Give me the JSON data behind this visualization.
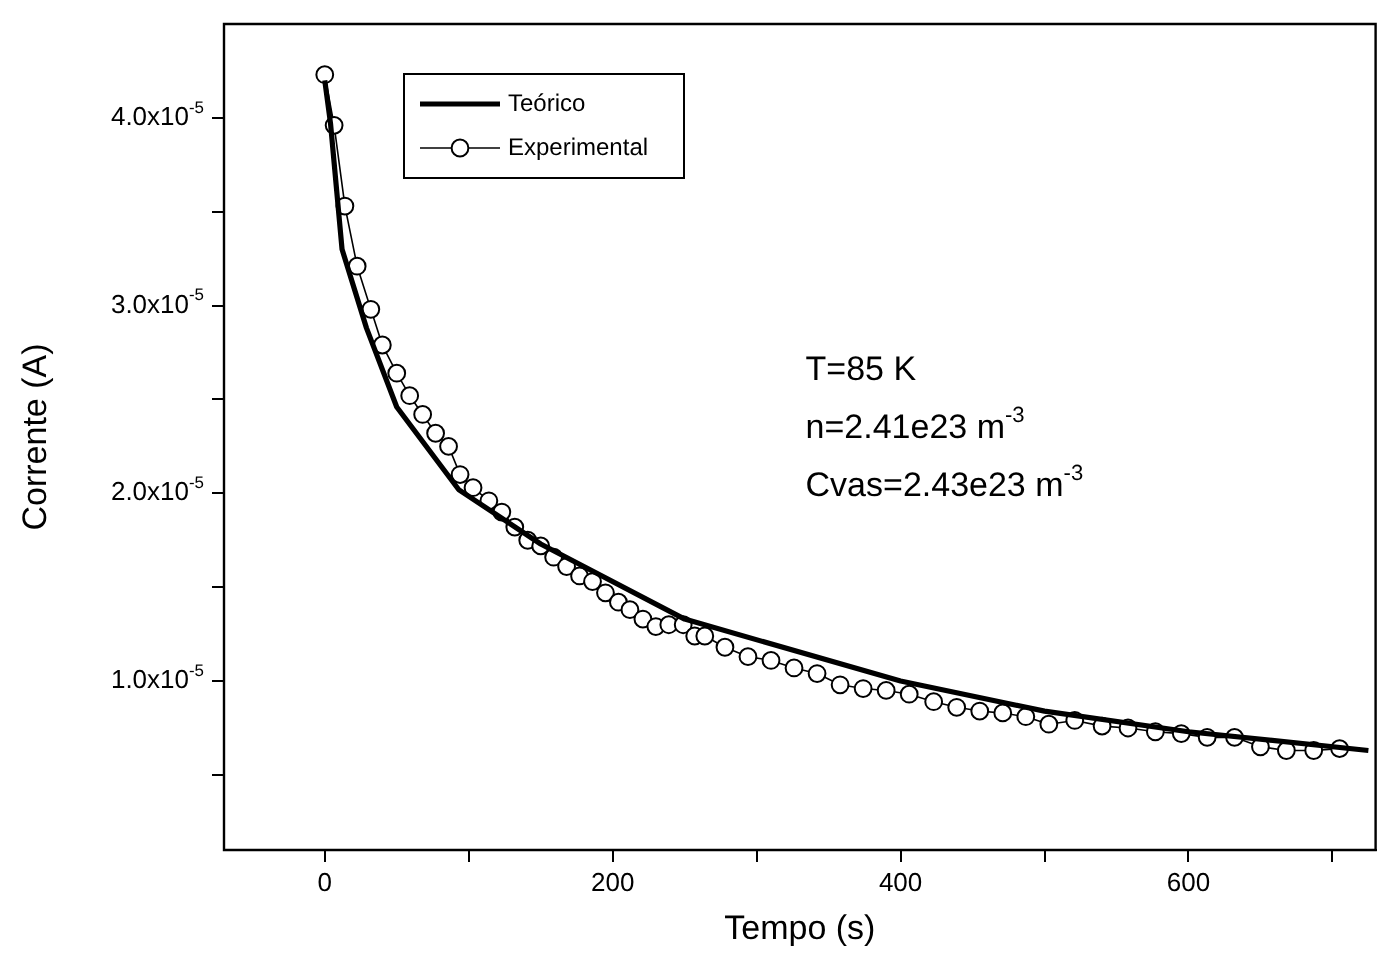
{
  "chart_data": {
    "type": "line",
    "xlabel": "Tempo (s)",
    "ylabel": "Corrente (A)",
    "xlim": [
      -70,
      730
    ],
    "ylim": [
      1e-06,
      4.5e-05
    ],
    "xticks": [
      {
        "value": 0,
        "label": "0"
      },
      {
        "value": 100,
        "label": null
      },
      200,
      {
        "value": 300,
        "label": null
      },
      400,
      {
        "value": 500,
        "label": null
      },
      600,
      {
        "value": 700,
        "label": null
      }
    ],
    "yticks": [
      {
        "value": 5e-06,
        "label": null
      },
      {
        "value": 1e-05,
        "label": "1.0x10$^{-5}$"
      },
      {
        "value": 1.5e-05,
        "label": null
      },
      {
        "value": 2e-05,
        "label": "2.0x10$^{-5}$"
      },
      {
        "value": 2.5e-05,
        "label": null
      },
      {
        "value": 3e-05,
        "label": "3.0x10$^{-5}$"
      },
      {
        "value": 3.5e-05,
        "label": null
      },
      {
        "value": 4e-05,
        "label": "4.0x10$^{-5}$"
      }
    ],
    "grid": false,
    "legend": "top left",
    "line_style": "solid",
    "annotations": [
      "T=85 K",
      "n=2.41e23 m$^{-3}$",
      "Cvas=2.43e23 m$^{-3}$"
    ],
    "series": [
      {
        "name": "Teórico",
        "color": "#000000",
        "marker": "none",
        "x": [
          0,
          4,
          12,
          29,
          50,
          93,
          150,
          250,
          400,
          500,
          600,
          725
        ],
        "values": [
          4.2e-05,
          3.97e-05,
          3.3e-05,
          2.88e-05,
          2.46e-05,
          2.02e-05,
          1.73e-05,
          1.33e-05,
          1e-05,
          8.4e-06,
          7.3e-06,
          6.3e-06
        ]
      },
      {
        "name": "Experimental",
        "color": "#000000",
        "marker": "circle",
        "x": [
          0,
          6.5,
          14,
          22.5,
          32,
          40,
          50,
          59,
          68,
          77,
          86,
          94,
          103,
          114,
          123,
          132,
          141,
          150,
          159,
          168,
          177,
          186,
          195,
          204,
          212,
          221,
          230,
          239,
          249,
          257,
          264,
          278,
          294,
          310,
          326,
          342,
          358,
          374,
          390,
          406,
          423,
          439,
          455,
          471,
          487,
          503,
          521,
          540,
          558,
          577,
          595,
          613,
          632,
          650,
          668,
          687,
          705
        ],
        "values": [
          4.23e-05,
          3.96e-05,
          3.53e-05,
          3.21e-05,
          2.98e-05,
          2.79e-05,
          2.64e-05,
          2.52e-05,
          2.42e-05,
          2.32e-05,
          2.25e-05,
          2.1e-05,
          2.03e-05,
          1.96e-05,
          1.9e-05,
          1.82e-05,
          1.75e-05,
          1.72e-05,
          1.66e-05,
          1.61e-05,
          1.56e-05,
          1.53e-05,
          1.47e-05,
          1.42e-05,
          1.38e-05,
          1.33e-05,
          1.29e-05,
          1.3e-05,
          1.3e-05,
          1.24e-05,
          1.24e-05,
          1.18e-05,
          1.13e-05,
          1.11e-05,
          1.07e-05,
          1.04e-05,
          9.8e-06,
          9.6e-06,
          9.5e-06,
          9.3e-06,
          8.9e-06,
          8.6e-06,
          8.4e-06,
          8.3e-06,
          8.1e-06,
          7.7e-06,
          7.9e-06,
          7.6e-06,
          7.5e-06,
          7.3e-06,
          7.2e-06,
          7e-06,
          7e-06,
          6.5e-06,
          6.3e-06,
          6.3e-06,
          6.4e-06
        ]
      }
    ]
  }
}
